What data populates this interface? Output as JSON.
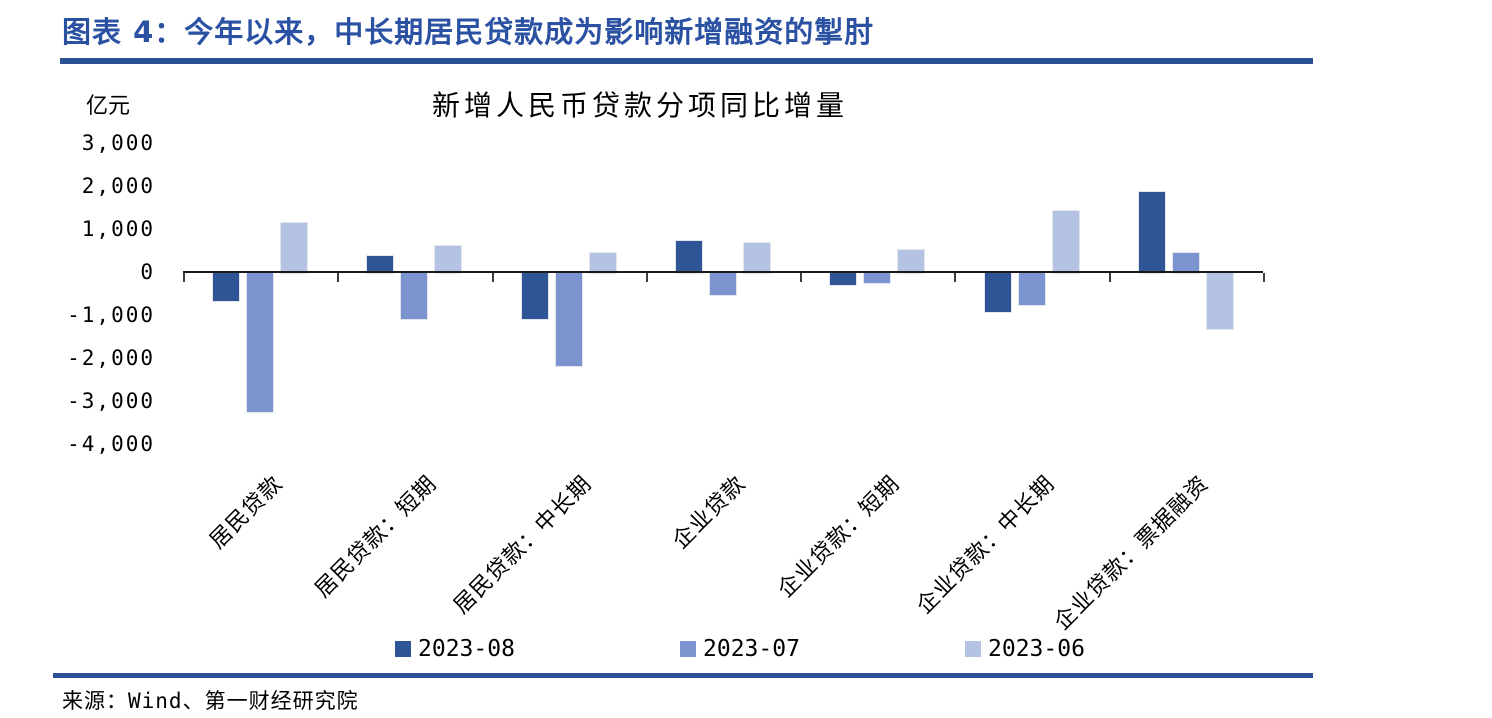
{
  "header": {
    "title": "图表 4：今年以来，中长期居民贷款成为影响新增融资的掣肘"
  },
  "colors": {
    "title_blue": "#2B51A3",
    "rule_blue": "#2B5094",
    "axis_black": "#1a1a1a"
  },
  "chart_data": {
    "type": "bar",
    "title": "新增人民币贷款分项同比增量",
    "ylabel": "亿元",
    "xlabel": "",
    "categories": [
      "居民贷款",
      "居民贷款：短期",
      "居民贷款：中长期",
      "企业贷款",
      "企业贷款：短期",
      "企业贷款：中长期",
      "企业贷款：票据融资"
    ],
    "series": [
      {
        "name": "2023-08",
        "color": "#2F5597",
        "values": [
          -658,
          398,
          -1056,
          738,
          -280,
          -909,
          1881
        ]
      },
      {
        "name": "2023-07",
        "color": "#7C95D1",
        "values": [
          -3224,
          -1066,
          -2158,
          -499,
          -239,
          -747,
          461
        ]
      },
      {
        "name": "2023-06",
        "color": "#B4C2E4",
        "values": [
          1157,
          632,
          463,
          687,
          543,
          1436,
          -1300
        ]
      }
    ],
    "ylim": [
      -4000,
      3000
    ],
    "yticks": [
      3000,
      2000,
      1000,
      0,
      -1000,
      -2000,
      -3000,
      -4000
    ],
    "ytick_labels": [
      "3,000",
      "2,000",
      "1,000",
      "0",
      "-1,000",
      "-2,000",
      "-3,000",
      "-4,000"
    ],
    "legend_position": "bottom",
    "grid": false
  },
  "footer": {
    "source": "来源：Wind、第一财经研究院"
  }
}
